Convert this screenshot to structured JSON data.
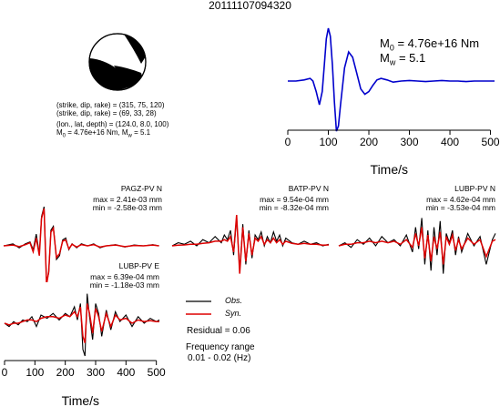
{
  "title": "20111107094320",
  "colors": {
    "observed": "#000000",
    "synthetic": "#dd0000",
    "stf": "#0000cc"
  },
  "mechanism": {
    "lines": [
      "(strike, dip, rake) = (315, 75, 120)",
      "(strike, dip, rake) = (69, 33, 28)",
      "(lon., lat, depth) = (124.0, 8.0, 100)"
    ],
    "m0_line": {
      "prefix": "M",
      "sub": "0",
      "text": " = 4.76e+16 Nm, M",
      "sub2": "w",
      "text2": " = 5.1"
    }
  },
  "stf_panel": {
    "m0_label": {
      "prefix": "M",
      "sub": "0",
      "value": " = 4.76e+16 Nm"
    },
    "mw_label": {
      "prefix": "M",
      "sub": "w",
      "value": " = 5.1"
    }
  },
  "legend": {
    "obs": "Obs.",
    "syn": "Syn.",
    "residual": "Residual = 0.06",
    "freq_title": "Frequency range",
    "freq_range": "0.01 - 0.02 (Hz)"
  },
  "chart_data": [
    {
      "type": "line",
      "name": "source-time-function",
      "xlabel": "Time/s",
      "xlim": [
        0,
        510
      ],
      "xticks": [
        0,
        100,
        200,
        300,
        400,
        500
      ],
      "series": [
        {
          "name": "",
          "x": [
            0,
            20,
            40,
            55,
            62,
            70,
            78,
            85,
            90,
            95,
            100,
            105,
            110,
            115,
            120,
            125,
            130,
            140,
            150,
            160,
            170,
            180,
            190,
            200,
            210,
            220,
            230,
            245,
            260,
            280,
            300,
            320,
            340,
            360,
            380,
            400,
            420,
            440,
            460,
            480,
            500,
            510
          ],
          "y": [
            0,
            0,
            0.02,
            0.05,
            0.0,
            -0.2,
            -0.45,
            -0.2,
            0.3,
            0.8,
            1.0,
            0.85,
            0.3,
            -0.4,
            -0.95,
            -0.85,
            -0.45,
            0.25,
            0.55,
            0.45,
            0.15,
            -0.15,
            -0.25,
            -0.2,
            -0.08,
            0.02,
            0.05,
            0.02,
            -0.02,
            0.0,
            0.01,
            0.0,
            -0.01,
            0.0,
            0.01,
            0.0,
            0.0,
            -0.01,
            0.0,
            0.0,
            0.0,
            0.0
          ]
        }
      ]
    },
    {
      "type": "line",
      "station": "PAGZ-PV N",
      "max_label": "max = 2.41e-03 mm",
      "min_label": "min = -2.58e-03 mm",
      "series": [
        {
          "name": "Obs.",
          "x": [
            0,
            30,
            50,
            70,
            85,
            95,
            105,
            115,
            122,
            130,
            138,
            145,
            152,
            160,
            170,
            180,
            190,
            200,
            210,
            220,
            235,
            250,
            270,
            290,
            310,
            330,
            360,
            390,
            420,
            450,
            480,
            500
          ],
          "y": [
            0,
            0.05,
            -0.05,
            0.05,
            0.1,
            -0.1,
            0.3,
            -0.2,
            0.75,
            1.0,
            -0.9,
            -0.7,
            0.4,
            0.5,
            -0.35,
            -0.25,
            0.15,
            0.2,
            -0.1,
            0.05,
            -0.05,
            0.05,
            0.0,
            0.05,
            -0.05,
            0.0,
            0.03,
            -0.03,
            0.02,
            0.0,
            0.03,
            0.0
          ]
        },
        {
          "name": "Syn.",
          "x": [
            0,
            30,
            50,
            70,
            85,
            95,
            105,
            115,
            122,
            130,
            138,
            145,
            152,
            160,
            170,
            180,
            190,
            200,
            210,
            220,
            235,
            250,
            270,
            290,
            310,
            330,
            360,
            390,
            420,
            450,
            480,
            500
          ],
          "y": [
            0,
            0.02,
            -0.02,
            0.03,
            0.08,
            -0.15,
            0.2,
            -0.25,
            0.7,
            0.95,
            -1.0,
            -0.65,
            0.35,
            0.45,
            -0.3,
            -0.2,
            0.12,
            0.15,
            -0.08,
            0.04,
            -0.03,
            0.03,
            0.0,
            0.03,
            -0.03,
            0.0,
            0.02,
            -0.02,
            0.01,
            0.0,
            0.02,
            0.0
          ]
        }
      ]
    },
    {
      "type": "line",
      "station": "BATP-PV N",
      "max_label": "max = 9.54e-04 mm",
      "min_label": "min = -8.32e-04 mm",
      "series": [
        {
          "name": "Obs.",
          "x": [
            0,
            20,
            40,
            60,
            80,
            100,
            120,
            140,
            160,
            170,
            180,
            190,
            200,
            210,
            220,
            230,
            240,
            250,
            260,
            270,
            280,
            290,
            300,
            310,
            320,
            330,
            340,
            350,
            360,
            370,
            390,
            410,
            430,
            450,
            470,
            490,
            510
          ],
          "y": [
            0,
            0.1,
            0.05,
            0.15,
            0.0,
            0.2,
            0.1,
            0.3,
            0.1,
            0.35,
            0.2,
            0.5,
            -0.3,
            0.9,
            -0.8,
            0.7,
            -0.6,
            0.5,
            -0.4,
            0.35,
            0.2,
            0.45,
            0.0,
            0.3,
            0.1,
            0.45,
            0.15,
            0.35,
            0.0,
            0.25,
            0.1,
            0.05,
            0.15,
            0.05,
            0.1,
            0.0,
            0.05
          ]
        },
        {
          "name": "Syn.",
          "x": [
            0,
            20,
            40,
            60,
            80,
            100,
            120,
            140,
            160,
            170,
            180,
            190,
            200,
            210,
            220,
            230,
            240,
            250,
            260,
            270,
            280,
            290,
            300,
            310,
            320,
            330,
            340,
            350,
            360,
            370,
            390,
            410,
            430,
            450,
            470,
            490,
            510
          ],
          "y": [
            0,
            0.02,
            0.03,
            0.05,
            0.05,
            0.08,
            0.1,
            0.15,
            0.15,
            0.2,
            0.15,
            0.3,
            -0.2,
            1.0,
            -0.9,
            0.6,
            -0.5,
            0.4,
            -0.3,
            0.25,
            0.15,
            0.3,
            0.05,
            0.2,
            0.1,
            0.25,
            0.1,
            0.2,
            0.05,
            0.15,
            0.08,
            0.05,
            0.08,
            0.05,
            0.05,
            0.02,
            0.03
          ]
        }
      ]
    },
    {
      "type": "line",
      "station": "LUBP-PV N",
      "max_label": "max = 4.62e-04 mm",
      "min_label": "min = -3.53e-04 mm",
      "series": [
        {
          "name": "Obs.",
          "x": [
            0,
            20,
            40,
            60,
            80,
            100,
            120,
            140,
            160,
            180,
            200,
            220,
            240,
            250,
            260,
            270,
            280,
            290,
            300,
            310,
            320,
            330,
            340,
            350,
            360,
            370,
            380,
            390,
            400,
            420,
            440,
            460,
            480,
            500,
            510
          ],
          "y": [
            0,
            0.1,
            -0.05,
            0.2,
            0.05,
            0.25,
            0.0,
            0.3,
            0.1,
            0.2,
            0.0,
            0.35,
            -0.2,
            0.6,
            -0.1,
            0.9,
            -0.6,
            0.5,
            -0.8,
            0.6,
            -0.3,
            0.8,
            -0.9,
            0.4,
            0.1,
            0.5,
            -0.3,
            0.3,
            -0.2,
            0.4,
            0.0,
            0.3,
            -0.6,
            0.2,
            0.4
          ]
        },
        {
          "name": "Syn.",
          "x": [
            0,
            20,
            40,
            60,
            80,
            100,
            120,
            140,
            160,
            180,
            200,
            220,
            240,
            250,
            260,
            270,
            280,
            290,
            300,
            310,
            320,
            330,
            340,
            350,
            360,
            370,
            380,
            390,
            400,
            420,
            440,
            460,
            480,
            500,
            510
          ],
          "y": [
            0,
            0.05,
            0.05,
            0.1,
            0.1,
            0.15,
            0.1,
            0.15,
            0.1,
            0.15,
            0.05,
            0.2,
            -0.05,
            0.4,
            0.0,
            0.6,
            -0.4,
            0.35,
            -0.5,
            0.3,
            -0.1,
            0.45,
            -0.6,
            0.3,
            0.05,
            0.35,
            -0.15,
            0.2,
            -0.1,
            0.25,
            0.05,
            0.2,
            -0.35,
            0.15,
            0.2
          ]
        }
      ]
    },
    {
      "type": "line",
      "station": "LUBP-PV E",
      "max_label": "max = 6.39e-04 mm",
      "min_label": "min = -1.18e-03 mm",
      "xlabel": "Time/s",
      "xlim": [
        0,
        510
      ],
      "xticks": [
        0,
        100,
        200,
        300,
        400,
        500
      ],
      "series": [
        {
          "name": "Obs.",
          "x": [
            0,
            15,
            30,
            45,
            60,
            75,
            90,
            105,
            120,
            140,
            160,
            180,
            200,
            215,
            230,
            240,
            250,
            258,
            265,
            272,
            280,
            290,
            300,
            310,
            320,
            335,
            350,
            365,
            380,
            400,
            420,
            440,
            460,
            480,
            500,
            510
          ],
          "y": [
            0,
            -0.1,
            0.05,
            -0.05,
            0.1,
            0.05,
            0.2,
            -0.1,
            0.25,
            0.15,
            0.3,
            0.1,
            0.3,
            0.2,
            0.5,
            0.1,
            0.6,
            -0.8,
            -1.0,
            0.9,
            0.2,
            -0.5,
            0.6,
            0.3,
            -0.4,
            0.4,
            -0.2,
            0.35,
            0.05,
            0.25,
            -0.1,
            0.2,
            0.0,
            0.15,
            0.05,
            0.1
          ]
        },
        {
          "name": "Syn.",
          "x": [
            0,
            15,
            30,
            45,
            60,
            75,
            90,
            105,
            120,
            140,
            160,
            180,
            200,
            215,
            230,
            240,
            250,
            258,
            265,
            272,
            280,
            290,
            300,
            310,
            320,
            335,
            350,
            365,
            380,
            400,
            420,
            440,
            460,
            480,
            500,
            510
          ],
          "y": [
            0,
            -0.05,
            0.0,
            0.0,
            0.05,
            0.1,
            0.1,
            0.05,
            0.15,
            0.2,
            0.2,
            0.15,
            0.25,
            0.2,
            0.35,
            0.2,
            0.5,
            -0.4,
            -0.6,
            0.6,
            0.3,
            -0.3,
            0.45,
            0.2,
            -0.25,
            0.3,
            -0.1,
            0.25,
            0.1,
            0.15,
            0.0,
            0.1,
            0.05,
            0.08,
            0.05,
            0.05
          ]
        }
      ]
    }
  ]
}
